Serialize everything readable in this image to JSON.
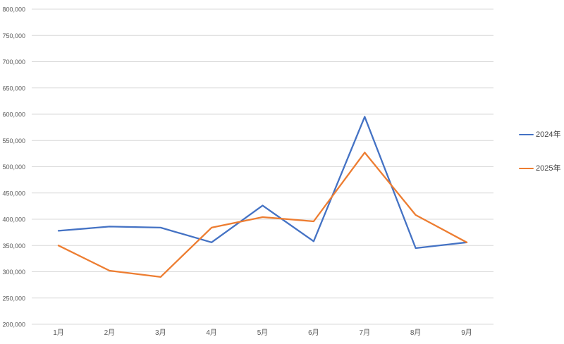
{
  "page": {
    "background_color": "#FFFFFF"
  },
  "chart_data": {
    "type": "line",
    "title": "",
    "xlabel": "",
    "ylabel": "",
    "categories": [
      "1月",
      "2月",
      "3月",
      "4月",
      "5月",
      "6月",
      "7月",
      "8月",
      "9月"
    ],
    "series": [
      {
        "name": "2024年",
        "color": "#4472C4",
        "values": [
          378000,
          386000,
          384000,
          356000,
          426000,
          358000,
          595000,
          345000,
          356000
        ]
      },
      {
        "name": "2025年",
        "color": "#ED7D31",
        "values": [
          350000,
          302000,
          290000,
          384000,
          404000,
          396000,
          527000,
          408000,
          356000
        ]
      }
    ],
    "ylim": [
      200000,
      800000
    ],
    "ytick_step": 50000,
    "y_ticks": [
      200000,
      250000,
      300000,
      350000,
      400000,
      450000,
      500000,
      550000,
      600000,
      650000,
      700000,
      750000,
      800000
    ],
    "y_tick_labels": [
      "200,000",
      "250,000",
      "300,000",
      "350,000",
      "400,000",
      "450,000",
      "500,000",
      "550,000",
      "600,000",
      "650,000",
      "700,000",
      "750,000",
      "800,000"
    ],
    "grid": true,
    "legend_position": "right",
    "gridline_color": "#D9D9D9",
    "axis_label_color": "#595959",
    "legend_text_color": "#404040",
    "line_width": 2.3
  }
}
